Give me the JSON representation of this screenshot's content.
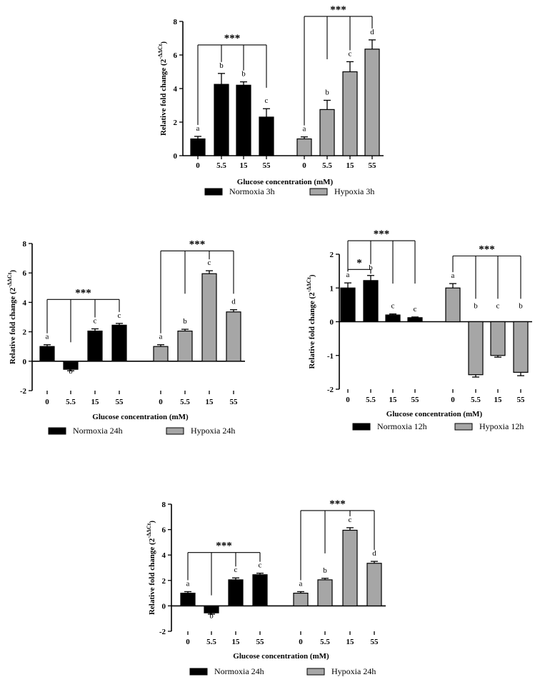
{
  "colors": {
    "normoxia": "#000000",
    "hypoxia": "#a6a6a6",
    "axis": "#000000"
  },
  "chart_data": [
    {
      "type": "bar",
      "panel": "top",
      "ylabel": "Relative fold change (2^-ΔΔCt)",
      "ylabel_main": "Relative fold change (2",
      "ylabel_sup": "-ΔΔCt",
      "ylabel_close": ")",
      "xlabel": "Glucose concentration (mM)",
      "ylim": [
        0,
        8
      ],
      "yticks": [
        0,
        2,
        4,
        6,
        8
      ],
      "ytick_labels": [
        "0",
        "2",
        "4",
        "6",
        "8"
      ],
      "series": [
        {
          "name": "Normoxia 3h",
          "color": "#000000",
          "categories": [
            "0",
            "5.5",
            "15",
            "55"
          ],
          "values": [
            1.0,
            4.25,
            4.2,
            2.3
          ],
          "errors": [
            0.15,
            0.65,
            0.2,
            0.5
          ],
          "letters": [
            "a",
            "b",
            "b",
            "c"
          ]
        },
        {
          "name": "Hypoxia 3h",
          "color": "#a6a6a6",
          "categories": [
            "0",
            "5.5",
            "15",
            "55"
          ],
          "values": [
            1.0,
            2.75,
            5.0,
            6.35
          ],
          "errors": [
            0.12,
            0.55,
            0.6,
            0.55
          ],
          "letters": [
            "a",
            "b",
            "c",
            "d"
          ]
        }
      ],
      "significance": [
        {
          "series": 0,
          "label": "***",
          "level": 6.6
        },
        {
          "series": 1,
          "label": "***",
          "level": 8.3
        }
      ],
      "legend": [
        "Normoxia 3h",
        "Hypoxia 3h"
      ]
    },
    {
      "type": "bar",
      "panel": "middle-left",
      "ylabel": "Relative fold change (2^-ΔΔCt)",
      "ylabel_main": "Relative fold change (2",
      "ylabel_sup": "-ΔΔCt",
      "ylabel_close": ")",
      "xlabel": "Glucose concentration (mM)",
      "ylim": [
        -2,
        8
      ],
      "yticks": [
        -2,
        0,
        2,
        4,
        6,
        8
      ],
      "ytick_labels": [
        "-2",
        "0",
        "2",
        "4",
        "6",
        "8"
      ],
      "series": [
        {
          "name": "Normoxia 24h",
          "color": "#000000",
          "categories": [
            "0",
            "5.5",
            "15",
            "55"
          ],
          "values": [
            1.0,
            -0.55,
            2.05,
            2.45
          ],
          "errors": [
            0.12,
            0.1,
            0.15,
            0.12
          ],
          "letters": [
            "a",
            "b",
            "c",
            "c"
          ]
        },
        {
          "name": "Hypoxia 24h",
          "color": "#a6a6a6",
          "categories": [
            "0",
            "5.5",
            "15",
            "55"
          ],
          "values": [
            1.0,
            2.05,
            5.95,
            3.35
          ],
          "errors": [
            0.12,
            0.12,
            0.2,
            0.15
          ],
          "letters": [
            "a",
            "b",
            "c",
            "d"
          ]
        }
      ],
      "significance": [
        {
          "series": 0,
          "label": "***",
          "level": 4.2
        },
        {
          "series": 1,
          "label": "***",
          "level": 7.5
        }
      ],
      "legend": [
        "Normoxia 24h",
        "Hypoxia 24h"
      ]
    },
    {
      "type": "bar",
      "panel": "middle-right",
      "ylabel": "Relative fold change (2^-ΔΔCt)",
      "ylabel_main": "Relative fold change (2",
      "ylabel_sup": "-ΔΔCt",
      "ylabel_close": ")",
      "xlabel": "Glucose concentration (mM)",
      "ylim": [
        -2,
        2
      ],
      "yticks": [
        -2,
        -1,
        0,
        1,
        2
      ],
      "ytick_labels": [
        "-2",
        "-1",
        "0",
        "1",
        "2"
      ],
      "series": [
        {
          "name": "Normoxia 12h",
          "color": "#000000",
          "categories": [
            "0",
            "5.5",
            "15",
            "55"
          ],
          "values": [
            1.0,
            1.22,
            0.2,
            0.12
          ],
          "errors": [
            0.15,
            0.15,
            0.03,
            0.02
          ],
          "letters": [
            "a",
            "b",
            "c",
            "c"
          ]
        },
        {
          "name": "Hypoxia 12h",
          "color": "#a6a6a6",
          "categories": [
            "0",
            "5.5",
            "15",
            "55"
          ],
          "values": [
            1.0,
            -1.57,
            -1.0,
            -1.5
          ],
          "errors": [
            0.13,
            0.07,
            0.05,
            0.1
          ],
          "letters": [
            "a",
            "b",
            "c",
            "b"
          ]
        }
      ],
      "significance": [
        {
          "series": 0,
          "label": "*",
          "level": 1.55,
          "span": [
            0,
            1
          ]
        },
        {
          "series": 0,
          "label": "***",
          "level": 2.4
        },
        {
          "series": 1,
          "label": "***",
          "level": 1.95
        }
      ],
      "legend": [
        "Normoxia 12h",
        "Hypoxia 12h"
      ]
    },
    {
      "type": "bar",
      "panel": "bottom",
      "ylabel": "Relative fold change (2^-ΔΔCt)",
      "ylabel_main": "Relative fold change (2",
      "ylabel_sup": "-ΔΔCt",
      "ylabel_close": ")",
      "xlabel": "Glucose concentration (mM)",
      "ylim": [
        -2,
        8
      ],
      "yticks": [
        -2,
        0,
        2,
        4,
        6,
        8
      ],
      "ytick_labels": [
        "-2",
        "0",
        "2",
        "4",
        "6",
        "8"
      ],
      "series": [
        {
          "name": "Normoxia 24h",
          "color": "#000000",
          "categories": [
            "0",
            "5.5",
            "15",
            "55"
          ],
          "values": [
            1.0,
            -0.55,
            2.05,
            2.45
          ],
          "errors": [
            0.12,
            0.1,
            0.15,
            0.12
          ],
          "letters": [
            "a",
            "b",
            "c",
            "c"
          ]
        },
        {
          "name": "Hypoxia 24h",
          "color": "#a6a6a6",
          "categories": [
            "0",
            "5.5",
            "15",
            "55"
          ],
          "values": [
            1.0,
            2.05,
            5.95,
            3.35
          ],
          "errors": [
            0.12,
            0.12,
            0.2,
            0.15
          ],
          "letters": [
            "a",
            "b",
            "c",
            "d"
          ]
        }
      ],
      "significance": [
        {
          "series": 0,
          "label": "***",
          "level": 4.2
        },
        {
          "series": 1,
          "label": "***",
          "level": 7.5
        }
      ],
      "legend": [
        "Normoxia 24h",
        "Hypoxia 24h"
      ]
    }
  ]
}
